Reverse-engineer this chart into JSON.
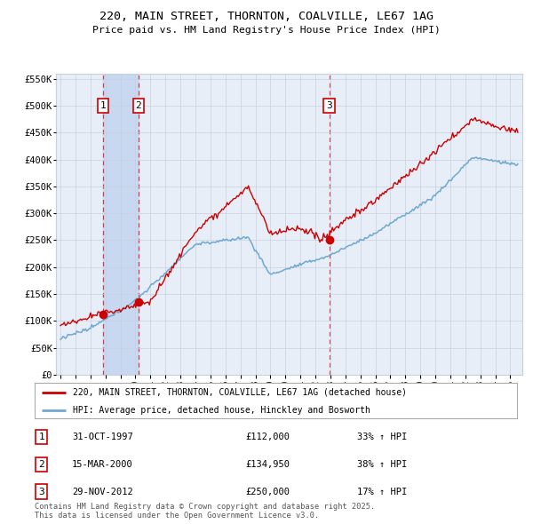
{
  "title": "220, MAIN STREET, THORNTON, COALVILLE, LE67 1AG",
  "subtitle": "Price paid vs. HM Land Registry's House Price Index (HPI)",
  "legend_line1": "220, MAIN STREET, THORNTON, COALVILLE, LE67 1AG (detached house)",
  "legend_line2": "HPI: Average price, detached house, Hinckley and Bosworth",
  "sale_prices": [
    112000,
    134950,
    250000
  ],
  "sale_labels": [
    "1",
    "2",
    "3"
  ],
  "sale_date_strs": [
    "31-OCT-1997",
    "15-MAR-2000",
    "29-NOV-2012"
  ],
  "sale_price_strs": [
    "£112,000",
    "£134,950",
    "£250,000"
  ],
  "sale_hpi_strs": [
    "33% ↑ HPI",
    "38% ↑ HPI",
    "17% ↑ HPI"
  ],
  "hpi_color": "#6fa8d0",
  "sale_color": "#cc0000",
  "background_color": "#e8eef8",
  "grid_color": "#c8d0dc",
  "ylim": [
    0,
    560000
  ],
  "yticks": [
    0,
    50000,
    100000,
    150000,
    200000,
    250000,
    300000,
    350000,
    400000,
    450000,
    500000,
    550000
  ],
  "ytick_labels": [
    "£0",
    "£50K",
    "£100K",
    "£150K",
    "£200K",
    "£250K",
    "£300K",
    "£350K",
    "£400K",
    "£450K",
    "£500K",
    "£550K"
  ],
  "footer": "Contains HM Land Registry data © Crown copyright and database right 2025.\nThis data is licensed under the Open Government Licence v3.0.",
  "vline_color": "#cc0000",
  "highlight_color": "#d0d8f0",
  "sale_decimal": [
    1997.833,
    2000.208,
    2012.917
  ]
}
